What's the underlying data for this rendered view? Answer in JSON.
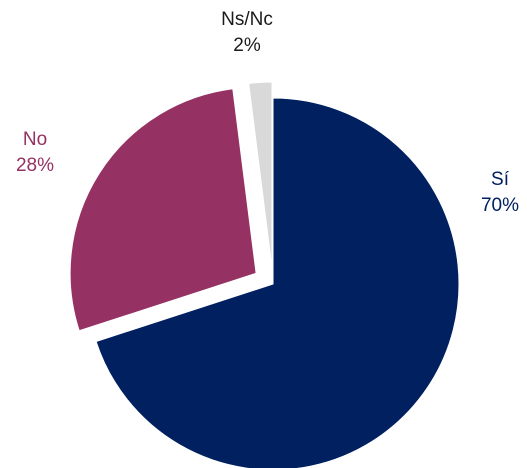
{
  "chart_data": {
    "type": "pie",
    "categories": [
      "Sí",
      "No",
      "Ns/Nc"
    ],
    "values": [
      70,
      28,
      2
    ],
    "value_labels": [
      "70%",
      "28%",
      "2%"
    ],
    "colors": [
      "#002060",
      "#953163",
      "#d9d9d9"
    ],
    "label_colors": [
      "#002060",
      "#953163",
      "#1a1a1a"
    ]
  }
}
